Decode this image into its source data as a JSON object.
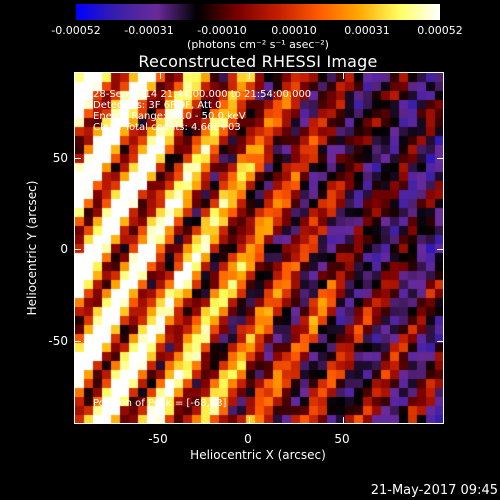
{
  "colorbar": {
    "ticks": [
      "-0.00052",
      "-0.00031",
      "-0.00010",
      "0.00010",
      "0.00031",
      "0.00052"
    ],
    "units": "(photons cm⁻² s⁻¹ asec⁻²)",
    "stops": [
      "#0000ff",
      "#3b1fa8",
      "#6a2a9a",
      "#000000",
      "#7a0000",
      "#c41e00",
      "#ff5a00",
      "#ffa800",
      "#ffff60",
      "#ffffff"
    ]
  },
  "title": "Reconstructed RHESSI Image",
  "info_lines": [
    "28-Sep-2014 21:44:00.000 to 21:54:00.000",
    "Detectors: 3F 6F 9F, Att 0",
    "Energy Range: 25.0 - 50.0 keV",
    "Clean  Total counts: 4.66E+03"
  ],
  "peak_text": "Position of Peak = [-68,33]",
  "axes": {
    "xlabel": "Heliocentric X (arcsec)",
    "ylabel": "Heliocentric Y (arcsec)",
    "xticks": [
      "-50",
      "0",
      "50"
    ],
    "yticks": [
      "50",
      "0",
      "-50"
    ]
  },
  "footer_time": "21-May-2017 09:45"
}
